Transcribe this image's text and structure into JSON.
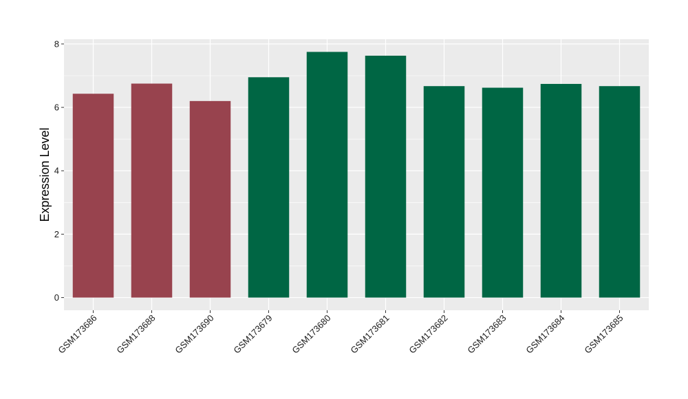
{
  "chart_data": {
    "type": "bar",
    "categories": [
      "GSM173686",
      "GSM173688",
      "GSM173690",
      "GSM173679",
      "GSM173680",
      "GSM173681",
      "GSM173682",
      "GSM173683",
      "GSM173684",
      "GSM173685"
    ],
    "values": [
      6.43,
      6.75,
      6.2,
      6.95,
      7.75,
      7.63,
      6.67,
      6.62,
      6.74,
      6.67
    ],
    "bar_colors": [
      "#98434e",
      "#98434e",
      "#98434e",
      "#006644",
      "#006644",
      "#006644",
      "#006644",
      "#006644",
      "#006644",
      "#006644"
    ],
    "title": "",
    "xlabel": "",
    "ylabel": "Expression Level",
    "ylim": [
      -0.4,
      8.15
    ],
    "yticks": [
      0,
      2,
      4,
      6,
      8
    ],
    "grid": true,
    "panel_background": "#ebebeb",
    "gridline_color": "#ffffff"
  }
}
